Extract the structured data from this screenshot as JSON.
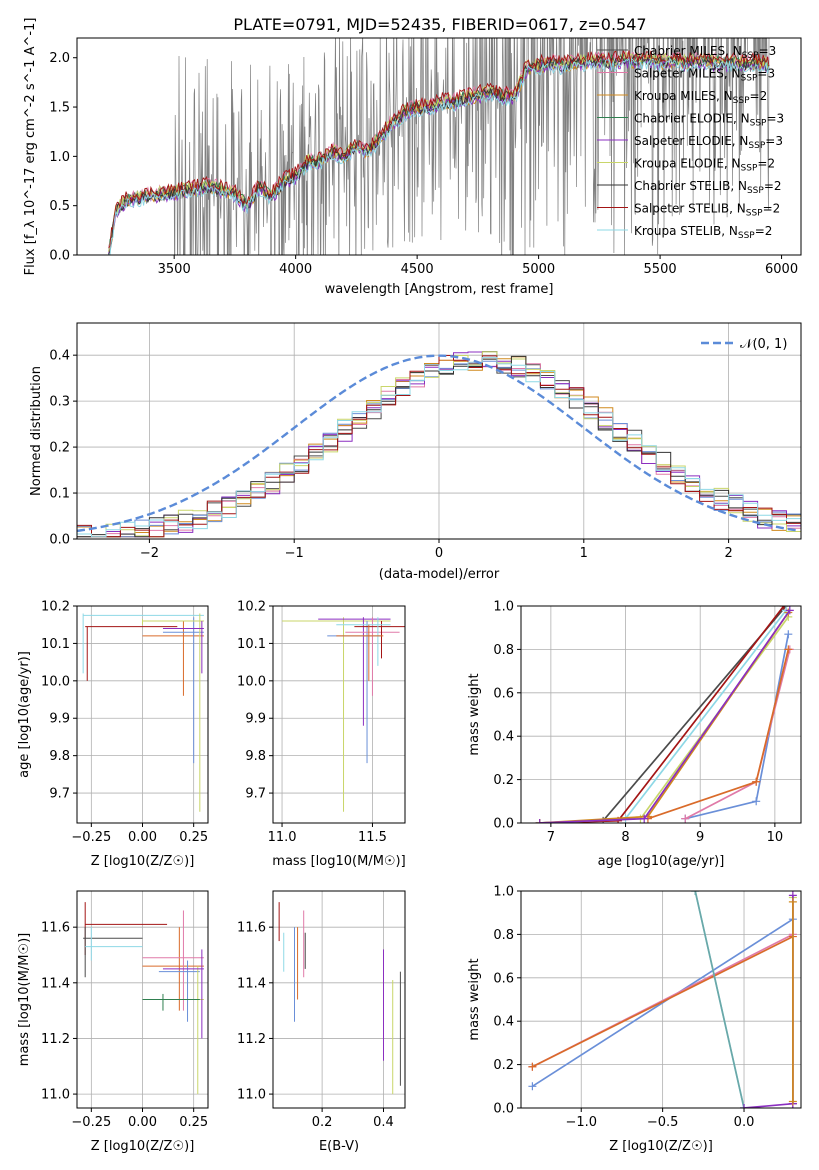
{
  "figure": {
    "title": "PLATE=0791, MJD=52435, FIBERID=0617, z=0.547"
  },
  "chart_data": [
    {
      "id": "spectrum",
      "type": "line",
      "xlabel": "wavelength [Angstrom, rest frame]",
      "ylabel": "Flux [f_λ 10^-17 erg cm^-2 s^-1 A^-1]",
      "xlim": [
        3100,
        6080
      ],
      "ylim": [
        0,
        2.2
      ],
      "xticks": [
        "3500",
        "4000",
        "4500",
        "5000",
        "5500",
        "6000"
      ],
      "yticks": [
        "0.0",
        "0.5",
        "1.0",
        "1.5",
        "2.0"
      ],
      "legend_position": "right",
      "data_color": "#7f7f7f",
      "continuum": {
        "x": [
          3230,
          3260,
          3300,
          3350,
          3400,
          3450,
          3500,
          3550,
          3600,
          3650,
          3700,
          3750,
          3800,
          3850,
          3900,
          3950,
          4000,
          4050,
          4100,
          4150,
          4200,
          4250,
          4300,
          4350,
          4400,
          4450,
          4500,
          4550,
          4600,
          4650,
          4700,
          4750,
          4800,
          4850,
          4900,
          4950,
          5000,
          5050,
          5100,
          5150,
          5200,
          5250,
          5300,
          5350,
          5400,
          5450,
          5500,
          5550,
          5600,
          5650,
          5700,
          5750,
          5800,
          5850,
          5900,
          5950
        ],
        "y": [
          0.0,
          0.45,
          0.55,
          0.58,
          0.6,
          0.62,
          0.63,
          0.66,
          0.68,
          0.7,
          0.66,
          0.62,
          0.5,
          0.7,
          0.6,
          0.75,
          0.8,
          0.95,
          0.95,
          1.05,
          1.0,
          1.1,
          1.05,
          1.2,
          1.35,
          1.45,
          1.5,
          1.5,
          1.55,
          1.55,
          1.6,
          1.62,
          1.65,
          1.62,
          1.6,
          1.9,
          1.92,
          1.95,
          1.92,
          1.95,
          1.96,
          1.97,
          1.96,
          1.98,
          1.97,
          1.98,
          1.96,
          1.98,
          1.95,
          1.97,
          1.96,
          1.95,
          1.95,
          1.94,
          1.95,
          1.93
        ]
      },
      "series": [
        {
          "name": "Chabrier MILES, N_SSP=3",
          "color": "#4b4b4b",
          "offset": 0.0
        },
        {
          "name": "Salpeter MILES, N_SSP=3",
          "color": "#e07aa8",
          "offset": 0.03
        },
        {
          "name": "Kroupa MILES, N_SSP=2",
          "color": "#d08a1f",
          "offset": -0.02
        },
        {
          "name": "Chabrier ELODIE, N_SSP=3",
          "color": "#2f7f4f",
          "offset": 0.01
        },
        {
          "name": "Salpeter ELODIE, N_SSP=3",
          "color": "#8b2fc0",
          "offset": -0.03
        },
        {
          "name": "Kroupa ELODIE, N_SSP=2",
          "color": "#c9d66a",
          "offset": 0.02
        },
        {
          "name": "Chabrier STELIB, N_SSP=2",
          "color": "#333333",
          "offset": -0.01
        },
        {
          "name": "Salpeter STELIB, N_SSP=2",
          "color": "#a31515",
          "offset": 0.04
        },
        {
          "name": "Kroupa STELIB, N_SSP=2",
          "color": "#8ed8e6",
          "offset": -0.04
        }
      ]
    },
    {
      "id": "residuals",
      "type": "line",
      "xlabel": "(data-model)/error",
      "ylabel": "Normed distribution",
      "xlim": [
        -2.5,
        2.5
      ],
      "ylim": [
        0,
        0.47
      ],
      "xticks": [
        "−2",
        "−1",
        "0",
        "1",
        "2"
      ],
      "yticks": [
        "0.0",
        "0.1",
        "0.2",
        "0.3",
        "0.4"
      ],
      "reference_label": "𝒩(0, 1)",
      "reference_color": "#5b8bd8",
      "legend_position": "top-right",
      "colors": [
        "#4b4b4b",
        "#e07aa8",
        "#d08a1f",
        "#6a8fd8",
        "#8b2fc0",
        "#c9d66a",
        "#333333",
        "#a31515",
        "#8ed8e6"
      ]
    },
    {
      "id": "age_vs_Z",
      "type": "scatter",
      "xlabel": "Z [log10(Z/Z☉)]",
      "ylabel": "age  [log10(age/yr)]",
      "xlim": [
        -0.32,
        0.32
      ],
      "ylim": [
        9.62,
        10.2
      ],
      "xticks": [
        "−0.25",
        "0.00",
        "0.25"
      ],
      "yticks": [
        "9.7",
        "9.8",
        "9.9",
        "10.0",
        "10.1",
        "10.2"
      ]
    },
    {
      "id": "age_vs_mass",
      "type": "scatter",
      "xlabel": "mass [log10(M/M☉)]",
      "ylabel": "",
      "xlim": [
        10.95,
        11.68
      ],
      "ylim": [
        9.62,
        10.2
      ],
      "xticks": [
        "11.0",
        "11.5"
      ],
      "yticks": [
        "9.7",
        "9.8",
        "9.9",
        "10.0",
        "10.1",
        "10.2"
      ]
    },
    {
      "id": "weight_vs_age",
      "type": "line",
      "xlabel": "age  [log10(age/yr)]",
      "ylabel": "mass weight",
      "xlim": [
        6.6,
        10.35
      ],
      "ylim": [
        0,
        1.0
      ],
      "xticks": [
        "7",
        "8",
        "9",
        "10"
      ],
      "yticks": [
        "0.0",
        "0.2",
        "0.4",
        "0.6",
        "0.8",
        "1.0"
      ]
    },
    {
      "id": "mass_vs_Z",
      "type": "scatter",
      "xlabel": "Z [log10(Z/Z☉)]",
      "ylabel": "mass [log10(M/M☉)]",
      "xlim": [
        -0.32,
        0.32
      ],
      "ylim": [
        10.95,
        11.73
      ],
      "xticks": [
        "−0.25",
        "0.00",
        "0.25"
      ],
      "yticks": [
        "11.0",
        "11.2",
        "11.4",
        "11.6"
      ]
    },
    {
      "id": "mass_vs_ebv",
      "type": "scatter",
      "xlabel": "E(B-V)",
      "ylabel": "",
      "xlim": [
        0.04,
        0.47
      ],
      "ylim": [
        10.95,
        11.73
      ],
      "xticks": [
        "0.2",
        "0.4"
      ],
      "yticks": [
        "11.0",
        "11.2",
        "11.4",
        "11.6"
      ]
    },
    {
      "id": "weight_vs_Z",
      "type": "line",
      "xlabel": "Z [log10(Z/Z☉)]",
      "ylabel": "mass weight",
      "xlim": [
        -1.37,
        0.35
      ],
      "ylim": [
        0,
        1.0
      ],
      "xticks": [
        "−1.0",
        "−0.5",
        "0.0"
      ],
      "yticks": [
        "0.0",
        "0.2",
        "0.4",
        "0.6",
        "0.8",
        "1.0"
      ]
    }
  ]
}
